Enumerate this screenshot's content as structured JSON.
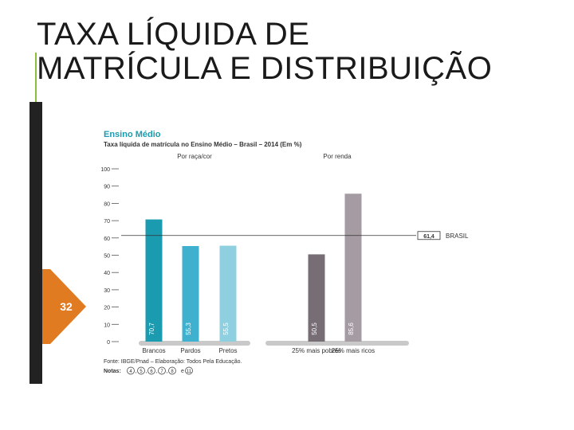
{
  "slide": {
    "title_line1": "TAXA LÍQUIDA DE",
    "title_line2": "MATRÍCULA E DISTRIBUIÇÃO",
    "page_number": "32"
  },
  "colors": {
    "accent": "#8bbf3a",
    "orange": "#e07b22",
    "brasil_line": "#333333"
  },
  "chart_data": {
    "type": "bar",
    "title": "Ensino Médio",
    "subtitle": "Taxa líquida de matrícula no Ensino Médio – Brasil – 2014 (Em %)",
    "groups": [
      {
        "label": "Por raça/cor",
        "categories": [
          "Brancos",
          "Pardos",
          "Pretos"
        ],
        "values": [
          70.7,
          55.3,
          55.5
        ],
        "colors": [
          "#1a9bb0",
          "#3fb1cf",
          "#8fd0e0"
        ]
      },
      {
        "label": "Por renda",
        "categories": [
          "25% mais pobres",
          "25% mais ricos"
        ],
        "values": [
          50.5,
          85.6
        ],
        "colors": [
          "#776d74",
          "#a59ba2"
        ]
      }
    ],
    "value_labels": [
      "70,7",
      "55,3",
      "55,5",
      "50,5",
      "85,6"
    ],
    "reference": {
      "value": 61.4,
      "value_label": "61,4",
      "label": "BRASIL"
    },
    "ylim": [
      0,
      100
    ],
    "yticks": [
      0,
      10,
      20,
      30,
      40,
      50,
      60,
      70,
      80,
      90,
      100
    ],
    "grid": false,
    "legend": "none",
    "source": "Fonte: IBGE/Pnad – Elaboração: Todos Pela Educação.",
    "notes_label": "Notas:",
    "notes": [
      "4",
      "5",
      "6",
      "7",
      "8",
      "11"
    ]
  }
}
